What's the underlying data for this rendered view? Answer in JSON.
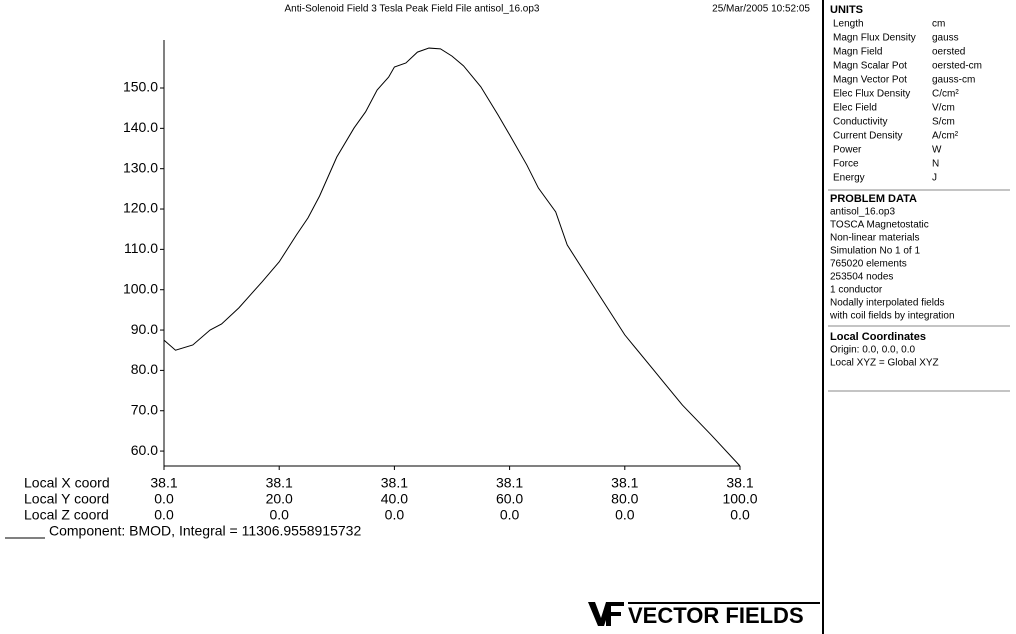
{
  "chart_data": {
    "type": "line",
    "title": "Anti-Solenoid Field   3 Tesla Peak Field File antisol_16.op3",
    "timestamp": "25/Mar/2005 10:52:05",
    "xlabel": "Local Y coord",
    "x_coord": {
      "label": "Local X coord",
      "ticks": [
        "38.1",
        "38.1",
        "38.1",
        "38.1",
        "38.1",
        "38.1"
      ]
    },
    "z_coord": {
      "label": "Local Z coord",
      "ticks": [
        "0.0",
        "0.0",
        "0.0",
        "0.0",
        "0.0",
        "0.0"
      ]
    },
    "x": [
      0,
      2,
      5,
      8,
      10,
      13,
      15,
      17,
      20,
      23,
      25,
      27,
      30,
      33,
      35,
      37,
      39,
      40,
      42,
      44,
      46,
      48,
      50,
      52,
      55,
      58,
      60,
      63,
      65,
      68,
      70,
      75,
      80,
      85,
      90,
      95,
      100
    ],
    "series": [
      {
        "name": "Component: BMOD, Integral = 11306.9558915732",
        "color": "#000000",
        "values": [
          87.5,
          85.0,
          86.3,
          90.0,
          91.5,
          95.5,
          98.7,
          101.9,
          106.9,
          113.6,
          117.8,
          123.2,
          132.9,
          140.1,
          144.1,
          149.5,
          152.7,
          155.2,
          156.2,
          158.9,
          159.9,
          159.7,
          157.9,
          155.5,
          150.3,
          143.3,
          138.4,
          130.9,
          125.2,
          119.3,
          111.1,
          99.9,
          88.8,
          80.1,
          71.4,
          64.0,
          56.3
        ]
      }
    ],
    "xlim": [
      0,
      100
    ],
    "xticks": [
      {
        "value": 0,
        "label": "0.0"
      },
      {
        "value": 20,
        "label": "20.0"
      },
      {
        "value": 40,
        "label": "40.0"
      },
      {
        "value": 60,
        "label": "60.0"
      },
      {
        "value": 80,
        "label": "80.0"
      },
      {
        "value": 100,
        "label": "100.0"
      }
    ],
    "ylim": [
      56.3,
      161.9
    ],
    "yticks": [
      {
        "value": 60,
        "label": "60.0"
      },
      {
        "value": 70,
        "label": "70.0"
      },
      {
        "value": 80,
        "label": "80.0"
      },
      {
        "value": 90,
        "label": "90.0"
      },
      {
        "value": 100,
        "label": "100.0"
      },
      {
        "value": 110,
        "label": "110.0"
      },
      {
        "value": 120,
        "label": "120.0"
      },
      {
        "value": 130,
        "label": "130.0"
      },
      {
        "value": 140,
        "label": "140.0"
      },
      {
        "value": 150,
        "label": "150.0"
      }
    ],
    "grid": false
  },
  "units": {
    "title": "UNITS",
    "rows": [
      [
        "Length",
        "cm"
      ],
      [
        "Magn Flux Density",
        "gauss"
      ],
      [
        "Magn Field",
        "oersted"
      ],
      [
        "Magn Scalar Pot",
        "oersted-cm"
      ],
      [
        "Magn Vector Pot",
        "gauss-cm"
      ],
      [
        "Elec Flux Density",
        "C/cm²"
      ],
      [
        "Elec Field",
        "V/cm"
      ],
      [
        "Conductivity",
        "S/cm"
      ],
      [
        "Current Density",
        "A/cm²"
      ],
      [
        "Power",
        "W"
      ],
      [
        "Force",
        "N"
      ],
      [
        "Energy",
        "J"
      ]
    ]
  },
  "problem_data": {
    "title": "PROBLEM DATA",
    "lines": [
      "antisol_16.op3",
      "TOSCA Magnetostatic",
      "Non-linear materials",
      "Simulation No 1 of 1",
      "765020 elements",
      "253504 nodes",
      "1 conductor",
      "Nodally interpolated fields",
      "with coil fields by integration"
    ]
  },
  "local_coordinates": {
    "title": "Local Coordinates",
    "lines": [
      "Origin: 0.0, 0.0, 0.0",
      "Local XYZ = Global XYZ"
    ]
  },
  "logo": "VECTOR FIELDS"
}
